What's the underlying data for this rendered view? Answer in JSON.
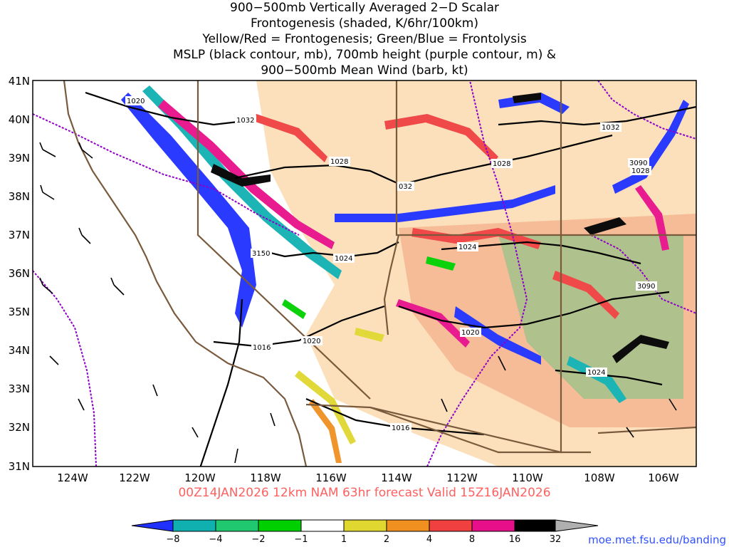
{
  "header": {
    "lines": [
      "900−500mb Vertically Averaged 2−D Scalar",
      "Frontogenesis (shaded, K/6hr/100km)",
      "Yellow/Red = Frontogenesis;  Green/Blue = Frontolysis",
      "MSLP (black contour, mb), 700mb height (purple contour, m) &",
      "900−500mb Mean Wind (barb, kt)"
    ]
  },
  "map": {
    "lat_labels": [
      "41N",
      "40N",
      "39N",
      "38N",
      "37N",
      "36N",
      "35N",
      "34N",
      "33N",
      "32N",
      "31N"
    ],
    "lon_labels": [
      "124W",
      "122W",
      "120W",
      "118W",
      "116W",
      "114W",
      "112W",
      "110W",
      "108W",
      "106W"
    ],
    "contour_labels": [
      {
        "text": "1020",
        "kind": "mslp"
      },
      {
        "text": "1032",
        "kind": "mslp"
      },
      {
        "text": "1028",
        "kind": "mslp"
      },
      {
        "text": "032",
        "kind": "mslp"
      },
      {
        "text": "1028",
        "kind": "mslp"
      },
      {
        "text": "1032",
        "kind": "mslp"
      },
      {
        "text": "3090",
        "kind": "height"
      },
      {
        "text": "1028",
        "kind": "mslp"
      },
      {
        "text": "3150",
        "kind": "height"
      },
      {
        "text": "1024",
        "kind": "mslp"
      },
      {
        "text": "1024",
        "kind": "mslp"
      },
      {
        "text": "3090",
        "kind": "height"
      },
      {
        "text": "1020",
        "kind": "mslp"
      },
      {
        "text": "1020",
        "kind": "mslp"
      },
      {
        "text": "1016",
        "kind": "mslp"
      },
      {
        "text": "1024",
        "kind": "mslp"
      },
      {
        "text": "1016",
        "kind": "mslp"
      }
    ],
    "colors": {
      "coast": "#7a5a3c",
      "border": "#7a5a3c",
      "mslp": "#000000",
      "height": "#9000c8"
    }
  },
  "forecast_line": "00Z14JAN2026 12km NAM 63hr forecast Valid 15Z16JAN2026",
  "colorbar": {
    "ticks": [
      "−8",
      "−4",
      "−2",
      "−1",
      "1",
      "2",
      "4",
      "8",
      "16",
      "32"
    ],
    "colors": [
      "#2030ff",
      "#10b0b0",
      "#20c870",
      "#00d000",
      "#ffffff",
      "#e0d830",
      "#f09020",
      "#f04040",
      "#e8108a",
      "#000000",
      "#b0b0b0"
    ]
  },
  "credit": "moe.met.fsu.edu/banding"
}
